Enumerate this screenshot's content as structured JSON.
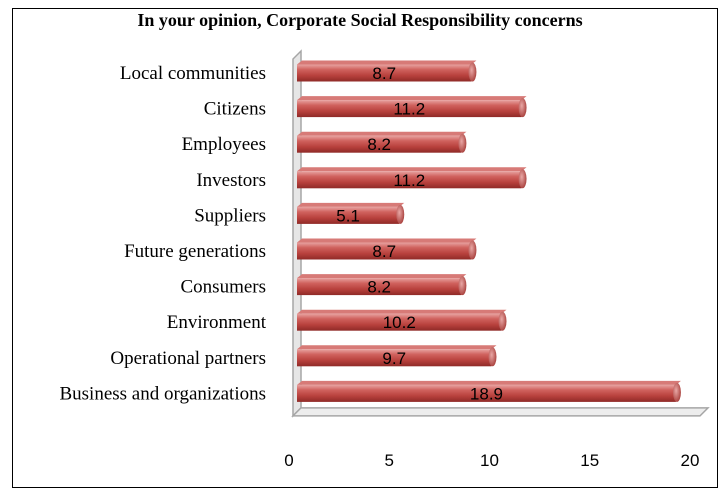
{
  "chart_data": {
    "type": "bar",
    "orientation": "horizontal",
    "title": "In your opinion, Corporate Social Responsibility concerns",
    "categories": [
      "Local communities",
      "Citizens",
      "Employees",
      "Investors",
      "Suppliers",
      "Future generations",
      "Consumers",
      "Environment",
      "Operational partners",
      "Business and organizations"
    ],
    "values": [
      8.7,
      11.2,
      8.2,
      11.2,
      5.1,
      8.7,
      8.2,
      10.2,
      9.7,
      18.9
    ],
    "value_labels": [
      "8.7",
      "11.2",
      "8.2",
      "11.2",
      "5.1",
      "8.7",
      "8.2",
      "10.2",
      "9.7",
      "18.9"
    ],
    "xlim": [
      0,
      20
    ],
    "xticks": [
      "0",
      "5",
      "10",
      "15",
      "20"
    ],
    "grid": false,
    "legend": "none",
    "bar_color": "#c0504d"
  }
}
